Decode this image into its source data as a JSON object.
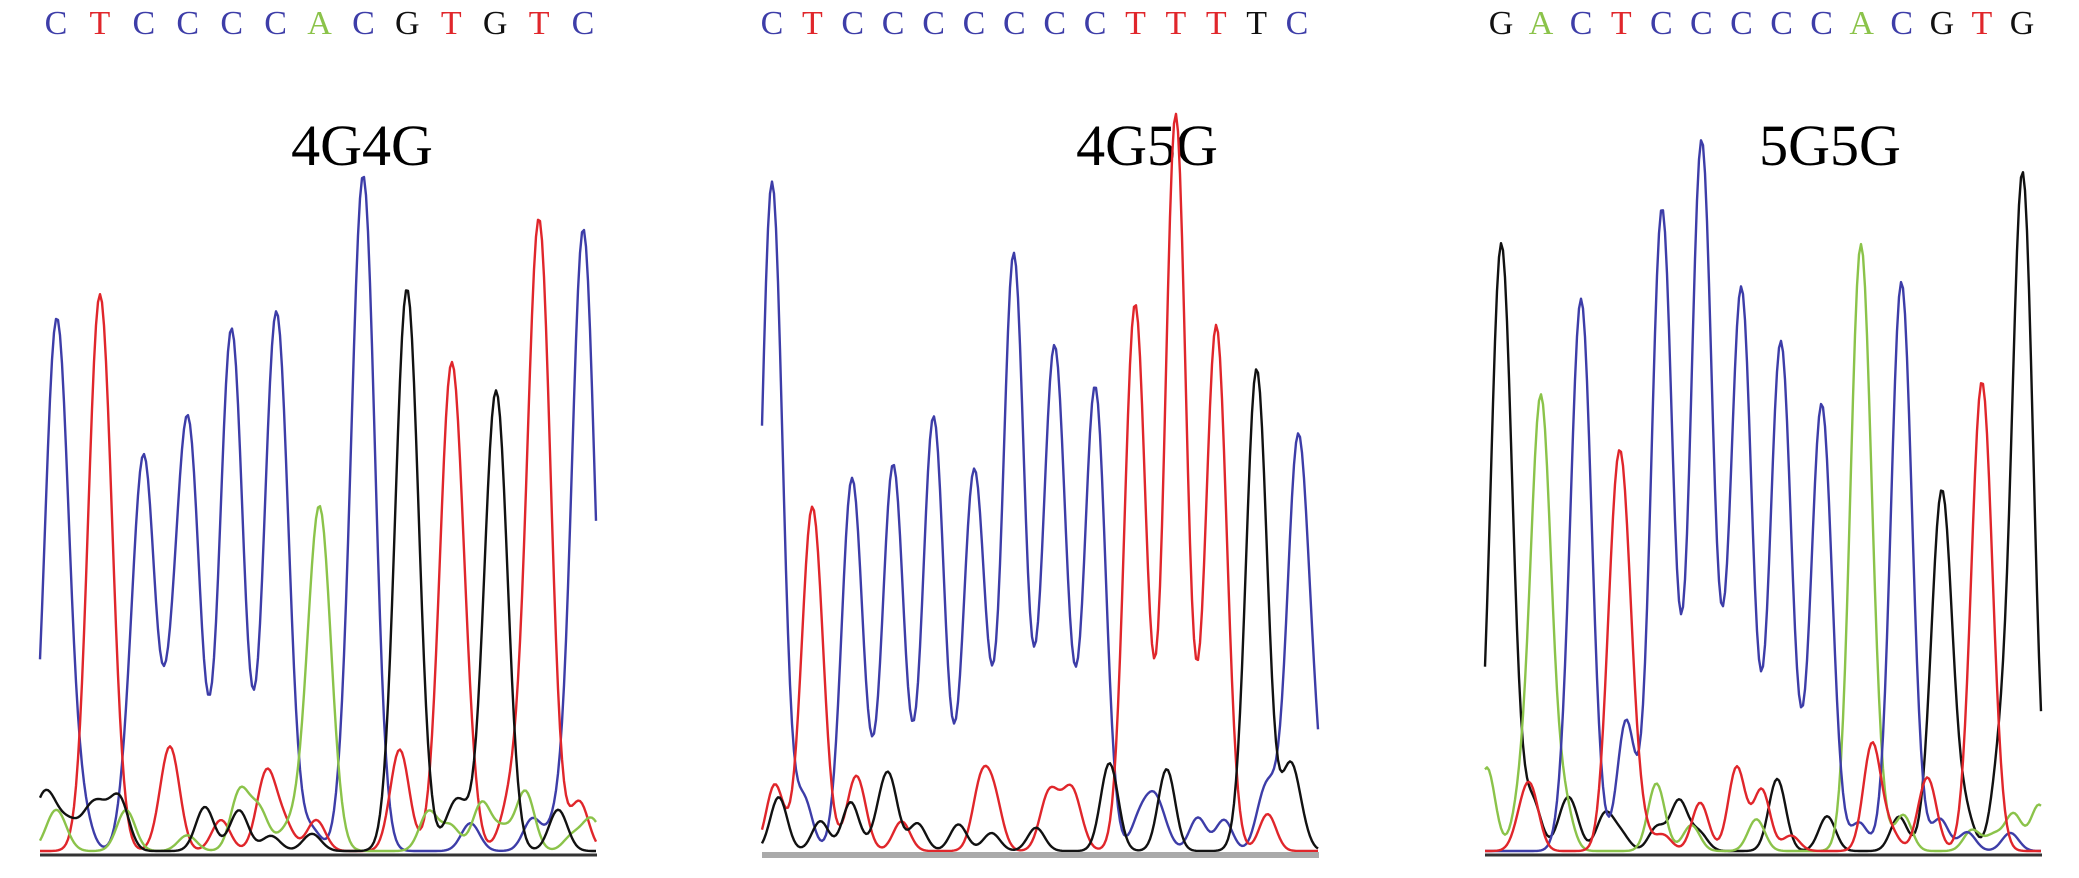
{
  "panels": [
    {
      "title": "4G4G",
      "bases": [
        "C",
        "T",
        "C",
        "C",
        "C",
        "C",
        "A",
        "C",
        "G",
        "T",
        "G",
        "T",
        "C"
      ],
      "base_colors": [
        "#3d3da8",
        "#e0262b",
        "#3d3da8",
        "#3d3da8",
        "#3d3da8",
        "#3d3da8",
        "#8bc34a",
        "#3d3da8",
        "#111111",
        "#e0262b",
        "#111111",
        "#e0262b",
        "#3d3da8"
      ]
    },
    {
      "title": "4G5G",
      "bases": [
        "C",
        "T",
        "C",
        "C",
        "C",
        "C",
        "C",
        "C",
        "C",
        "T",
        "T",
        "T",
        "T",
        "C"
      ],
      "base_colors": [
        "#3d3da8",
        "#e0262b",
        "#3d3da8",
        "#3d3da8",
        "#3d3da8",
        "#3d3da8",
        "#3d3da8",
        "#3d3da8",
        "#3d3da8",
        "#e0262b",
        "#e0262b",
        "#e0262b",
        "#111111",
        "#3d3da8"
      ]
    },
    {
      "title": "5G5G",
      "bases": [
        "G",
        "A",
        "C",
        "T",
        "C",
        "C",
        "C",
        "C",
        "C",
        "A",
        "C",
        "G",
        "T",
        "G"
      ],
      "base_colors": [
        "#111111",
        "#8bc34a",
        "#3d3da8",
        "#e0262b",
        "#3d3da8",
        "#3d3da8",
        "#3d3da8",
        "#3d3da8",
        "#3d3da8",
        "#8bc34a",
        "#3d3da8",
        "#111111",
        "#e0262b",
        "#111111"
      ]
    }
  ]
}
